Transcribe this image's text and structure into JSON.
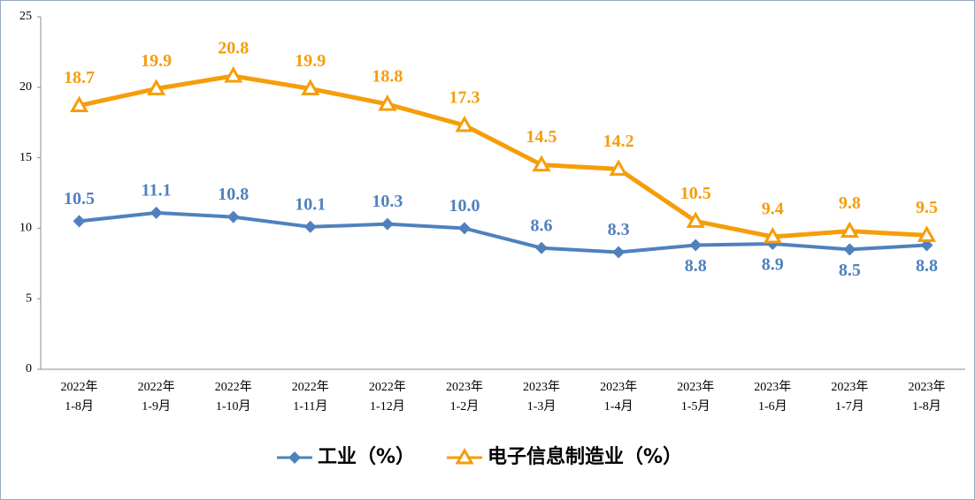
{
  "chart_data": {
    "type": "line",
    "categories": [
      "2022年\n1-8月",
      "2022年\n1-9月",
      "2022年\n1-10月",
      "2022年\n1-11月",
      "2022年\n1-12月",
      "2023年\n1-2月",
      "2023年\n1-3月",
      "2023年\n1-4月",
      "2023年\n1-5月",
      "2023年\n1-6月",
      "2023年\n1-7月",
      "2023年\n1-8月"
    ],
    "series": [
      {
        "name": "工业（%）",
        "color": "#4f81bd",
        "marker": "diamond",
        "values": [
          10.5,
          11.1,
          10.8,
          10.1,
          10.3,
          10.0,
          8.6,
          8.3,
          8.8,
          8.9,
          8.5,
          8.8
        ],
        "value_labels": [
          "10.5",
          "11.1",
          "10.8",
          "10.1",
          "10.3",
          "10.0",
          "8.6",
          "8.3",
          "8.8",
          "8.9",
          "8.5",
          "8.8"
        ]
      },
      {
        "name": "电子信息制造业（%）",
        "color": "#f59d0a",
        "marker": "triangle",
        "values": [
          18.7,
          19.9,
          20.8,
          19.9,
          18.8,
          17.3,
          14.5,
          14.2,
          10.5,
          9.4,
          9.8,
          9.5
        ]
      }
    ],
    "ylim": [
      0,
      25
    ],
    "yticks": [
      0,
      5,
      10,
      15,
      20,
      25
    ],
    "grid": false,
    "legend": "bottom"
  }
}
